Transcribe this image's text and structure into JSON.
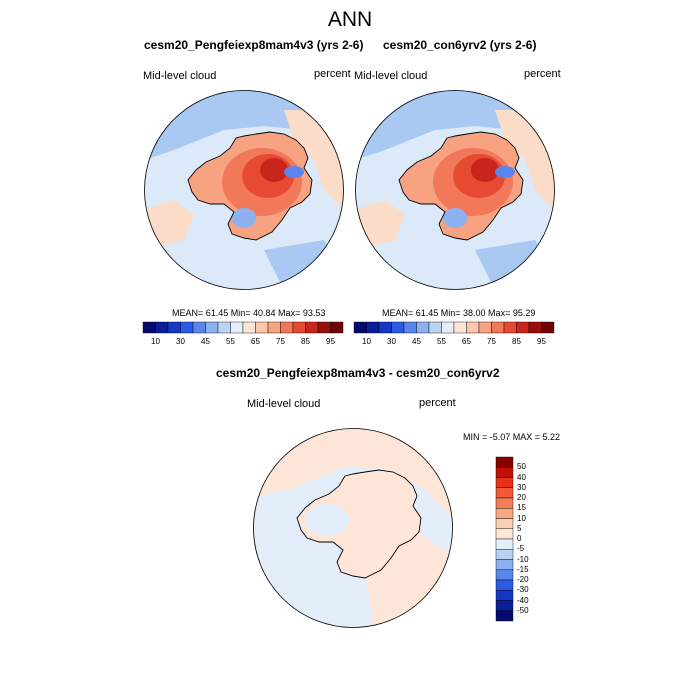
{
  "main_title": "ANN",
  "panels": [
    {
      "title": "cesm20_Pengfeiexp8mam4v3 (yrs 2-6)",
      "left_label": "Mid-level cloud",
      "right_label": "percent",
      "stats": "MEAN= 61.45 Min= 40.84 Max= 93.53"
    },
    {
      "title": "cesm20_con6yrv2 (yrs 2-6)",
      "left_label": "Mid-level cloud",
      "right_label": "percent",
      "stats": "MEAN= 61.45 Min= 38.00 Max= 95.29"
    }
  ],
  "diff_panel": {
    "title": "cesm20_Pengfeiexp8mam4v3 - cesm20_con6yrv2",
    "left_label": "Mid-level cloud",
    "right_label": "percent",
    "stats": "MIN = -5.07 MAX = 5.22"
  },
  "abs_colorbar": {
    "colors": [
      "#050a6e",
      "#0a1e9a",
      "#1537c8",
      "#2a5ae6",
      "#5a86ec",
      "#8cb0f0",
      "#bcd4f4",
      "#e4eefa",
      "#fde6d8",
      "#fbc8ac",
      "#f7a382",
      "#f2785a",
      "#e64a32",
      "#c8261c",
      "#9a0e0a",
      "#6e0404"
    ],
    "labels": [
      "10",
      "30",
      "45",
      "55",
      "65",
      "75",
      "85",
      "95"
    ]
  },
  "diff_colorbar": {
    "colors": [
      "#8a0000",
      "#c01008",
      "#e8301a",
      "#f05a36",
      "#f47e58",
      "#f8a882",
      "#fcd0b4",
      "#fde6d8",
      "#e4eefa",
      "#b8d0f4",
      "#8cb0f0",
      "#5a86ec",
      "#2a5ae6",
      "#1537c8",
      "#0a1e9a",
      "#050a6e"
    ],
    "labels": [
      "50",
      "40",
      "30",
      "20",
      "15",
      "10",
      "5",
      "0",
      "-5",
      "-10",
      "-15",
      "-20",
      "-30",
      "-40",
      "-50"
    ]
  }
}
